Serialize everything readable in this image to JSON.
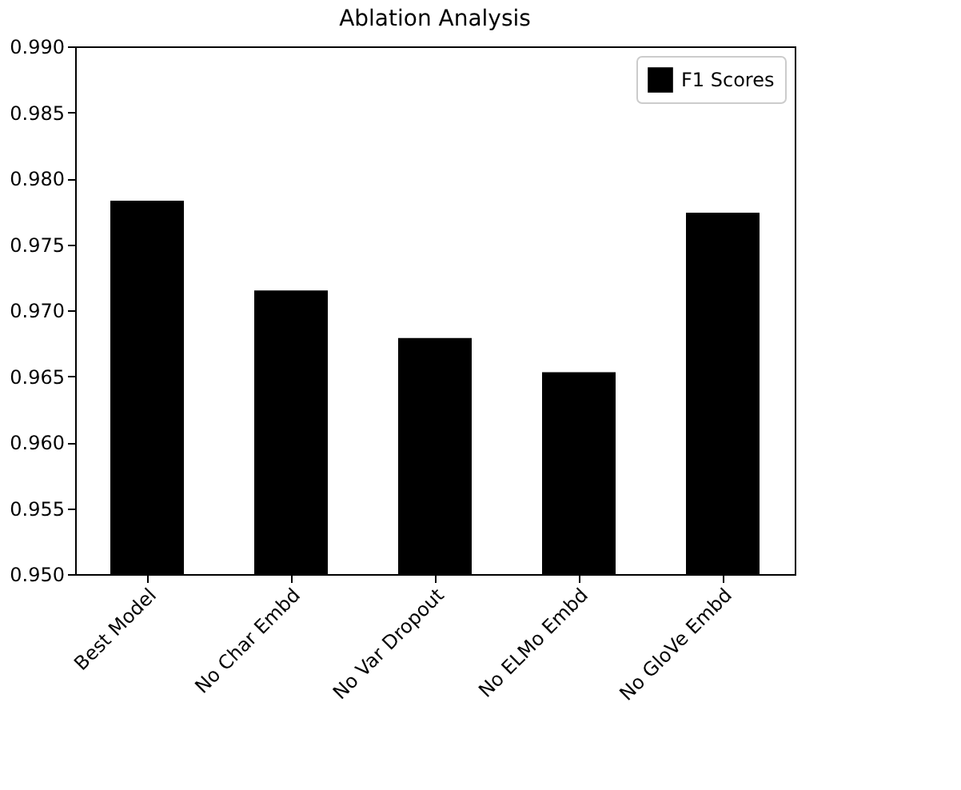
{
  "chart_data": {
    "type": "bar",
    "title": "Ablation Analysis",
    "categories": [
      "Best Model",
      "No Char Embd",
      "No Var Dropout",
      "No ELMo Embd",
      "No GloVe Embd"
    ],
    "series": [
      {
        "name": "F1 Scores",
        "color": "#000000",
        "values": [
          0.9783,
          0.9715,
          0.9679,
          0.9653,
          0.9774
        ]
      }
    ],
    "ylim": [
      0.95,
      0.99
    ],
    "yticks": [
      {
        "value": 0.95,
        "label": "0.950"
      },
      0.955,
      {
        "value": 0.96,
        "label": "0.960"
      },
      0.965,
      {
        "value": 0.97,
        "label": "0.970"
      },
      0.975,
      {
        "value": 0.98,
        "label": "0.980"
      },
      0.985,
      {
        "value": 0.99,
        "label": "0.990"
      }
    ],
    "grid": false,
    "legend": "top right"
  }
}
